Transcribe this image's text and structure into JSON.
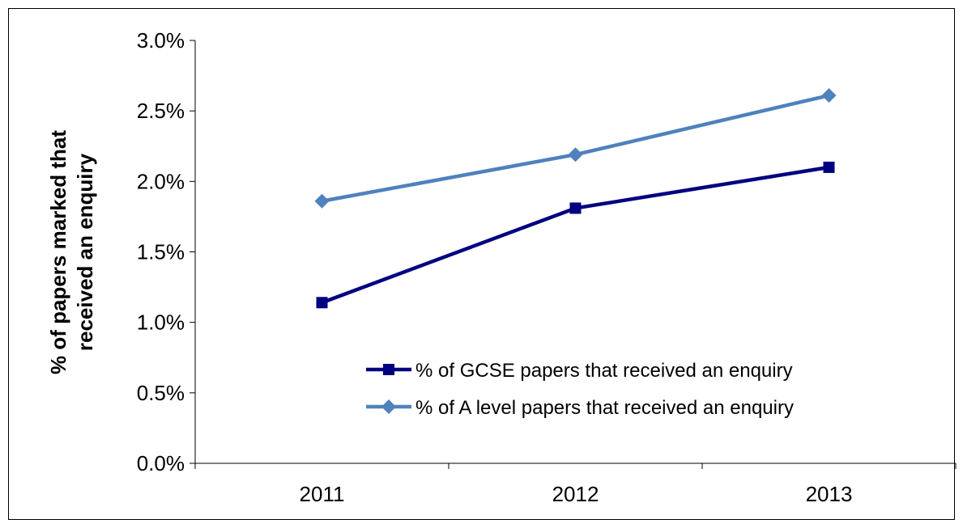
{
  "chart_data": {
    "type": "line",
    "categories": [
      "2011",
      "2012",
      "2013"
    ],
    "series": [
      {
        "name": "% of GCSE papers that received an enquiry",
        "values": [
          1.14,
          1.81,
          2.1
        ],
        "color": "#000080",
        "marker": "square"
      },
      {
        "name": "% of A level papers that received an enquiry",
        "values": [
          1.86,
          2.19,
          2.61
        ],
        "color": "#4F81BD",
        "marker": "diamond"
      }
    ],
    "title": "",
    "xlabel": "",
    "ylabel_lines": [
      "% of papers marked that",
      "received an enquiry"
    ],
    "ylim": [
      0,
      3.0
    ],
    "yticks": [
      0.0,
      0.5,
      1.0,
      1.5,
      2.0,
      2.5,
      3.0
    ],
    "ytick_labels": [
      "0.0%",
      "0.5%",
      "1.0%",
      "1.5%",
      "2.0%",
      "2.5%",
      "3.0%"
    ],
    "grid": false,
    "legend_position": "lower-right"
  }
}
